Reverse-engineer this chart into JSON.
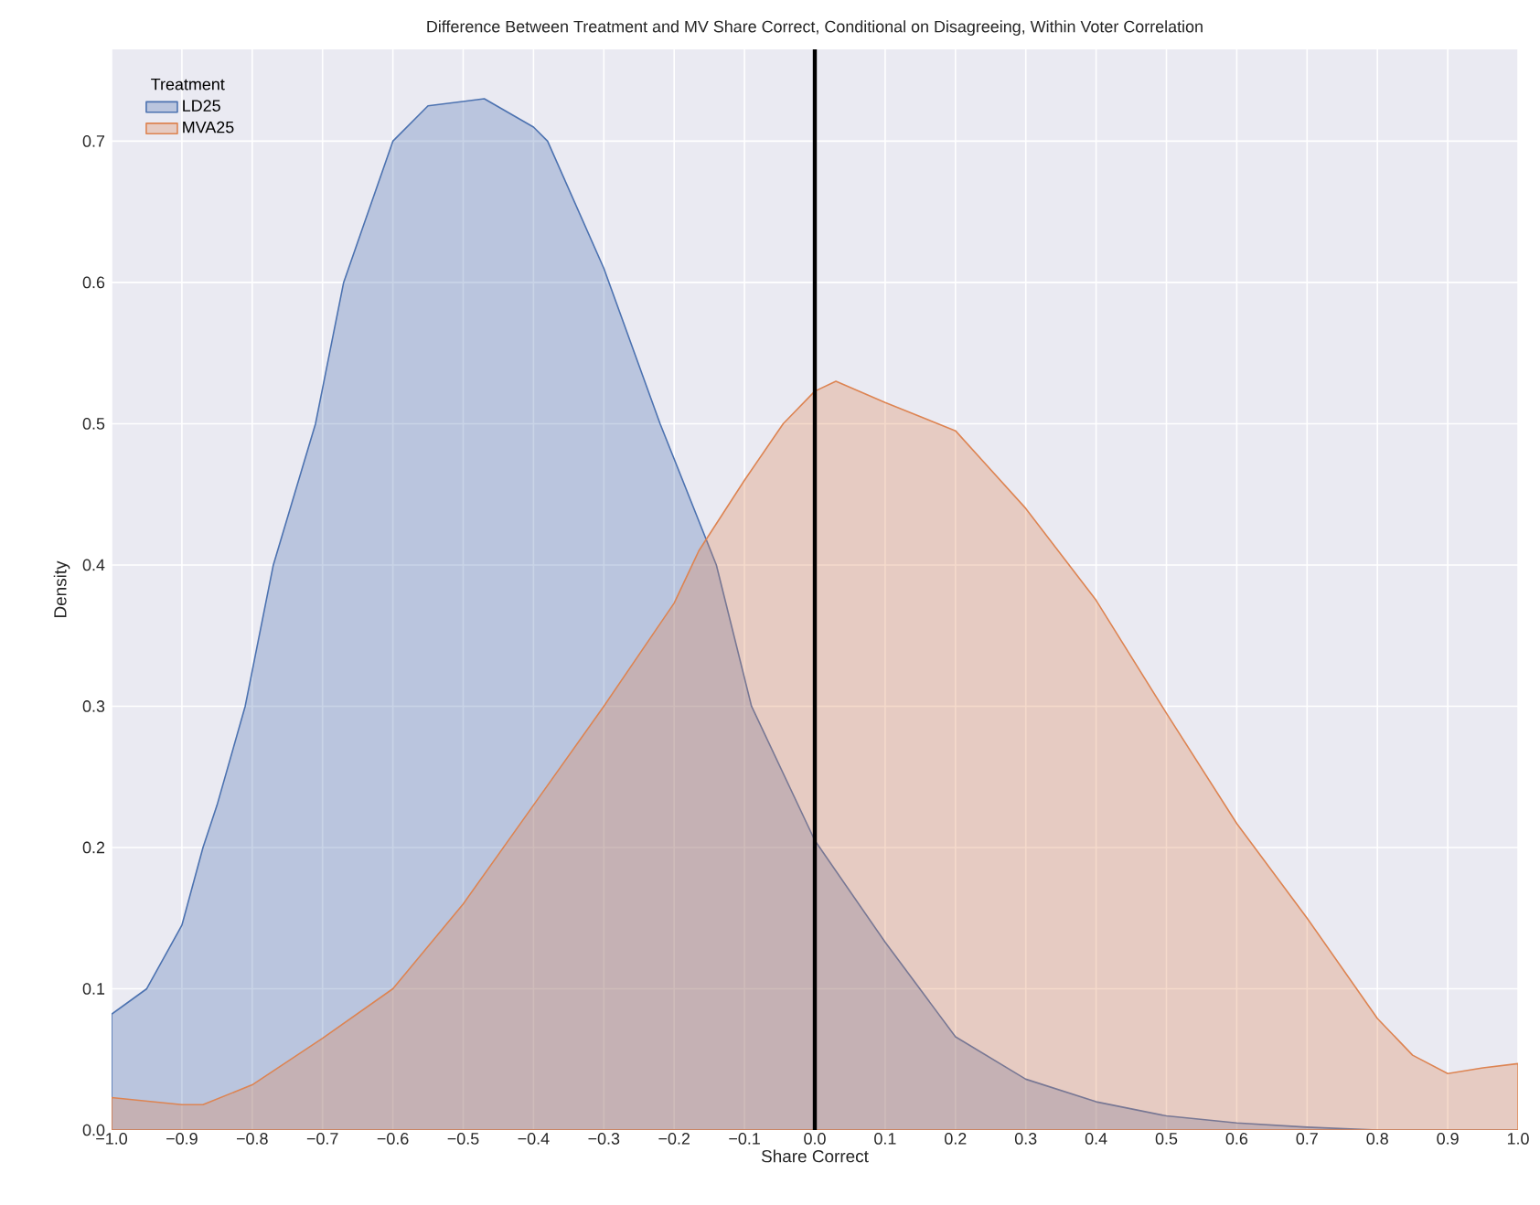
{
  "chart_data": {
    "type": "area",
    "title": "Difference Between Treatment and MV Share Correct, Conditional on Disagreeing, Within Voter Correlation",
    "xlabel": "Share Correct",
    "ylabel": "Density",
    "legend_title": "Treatment",
    "series": [
      {
        "name": "LD25",
        "color": "#4c72b0",
        "x": [
          -1.0,
          -0.95,
          -0.9,
          -0.87,
          -0.85,
          -0.81,
          -0.77,
          -0.71,
          -0.67,
          -0.6,
          -0.55,
          -0.47,
          -0.4,
          -0.38,
          -0.3,
          -0.22,
          -0.14,
          -0.09,
          0.0,
          0.1,
          0.2,
          0.3,
          0.4,
          0.5,
          0.6,
          0.7,
          0.8,
          0.9,
          1.0
        ],
        "values": [
          0.082,
          0.1,
          0.145,
          0.2,
          0.23,
          0.3,
          0.4,
          0.5,
          0.6,
          0.7,
          0.725,
          0.73,
          0.71,
          0.7,
          0.61,
          0.5,
          0.4,
          0.3,
          0.205,
          0.133,
          0.066,
          0.036,
          0.02,
          0.01,
          0.005,
          0.002,
          0.0,
          0.0,
          0.0
        ]
      },
      {
        "name": "MVA25",
        "color": "#dd8452",
        "x": [
          -1.0,
          -0.9,
          -0.87,
          -0.8,
          -0.7,
          -0.6,
          -0.5,
          -0.4,
          -0.3,
          -0.2,
          -0.165,
          -0.1,
          -0.045,
          0.0,
          0.03,
          0.1,
          0.2,
          0.3,
          0.4,
          0.5,
          0.6,
          0.7,
          0.8,
          0.85,
          0.9,
          0.95,
          1.0
        ],
        "values": [
          0.023,
          0.018,
          0.018,
          0.032,
          0.065,
          0.1,
          0.16,
          0.23,
          0.3,
          0.373,
          0.41,
          0.46,
          0.5,
          0.523,
          0.53,
          0.515,
          0.495,
          0.44,
          0.375,
          0.295,
          0.217,
          0.15,
          0.079,
          0.053,
          0.04,
          0.044,
          0.047
        ]
      }
    ],
    "ref_lines": [
      {
        "axis": "x",
        "value": 0,
        "color": "#000000"
      }
    ],
    "xlim": [
      -1.0,
      1.0
    ],
    "ylim": [
      0,
      0.765
    ],
    "xticks": [
      {
        "value": -1.0,
        "label": "−1.0"
      },
      {
        "value": -0.9,
        "label": "−0.9"
      },
      {
        "value": -0.8,
        "label": "−0.8"
      },
      {
        "value": -0.7,
        "label": "−0.7"
      },
      {
        "value": -0.6,
        "label": "−0.6"
      },
      {
        "value": -0.5,
        "label": "−0.5"
      },
      {
        "value": -0.4,
        "label": "−0.4"
      },
      {
        "value": -0.3,
        "label": "−0.3"
      },
      {
        "value": -0.2,
        "label": "−0.2"
      },
      {
        "value": -0.1,
        "label": "−0.1"
      },
      {
        "value": 0,
        "label": "0.0"
      },
      0.1,
      0.2,
      0.3,
      0.4,
      0.5,
      0.6,
      0.7,
      0.8,
      0.9,
      {
        "value": 1,
        "label": "1.0"
      }
    ],
    "yticks": [
      {
        "value": 0,
        "label": "0.0"
      },
      0.1,
      0.2,
      0.3,
      0.4,
      0.5,
      0.6,
      0.7
    ],
    "grid": true,
    "legend": "top left"
  }
}
